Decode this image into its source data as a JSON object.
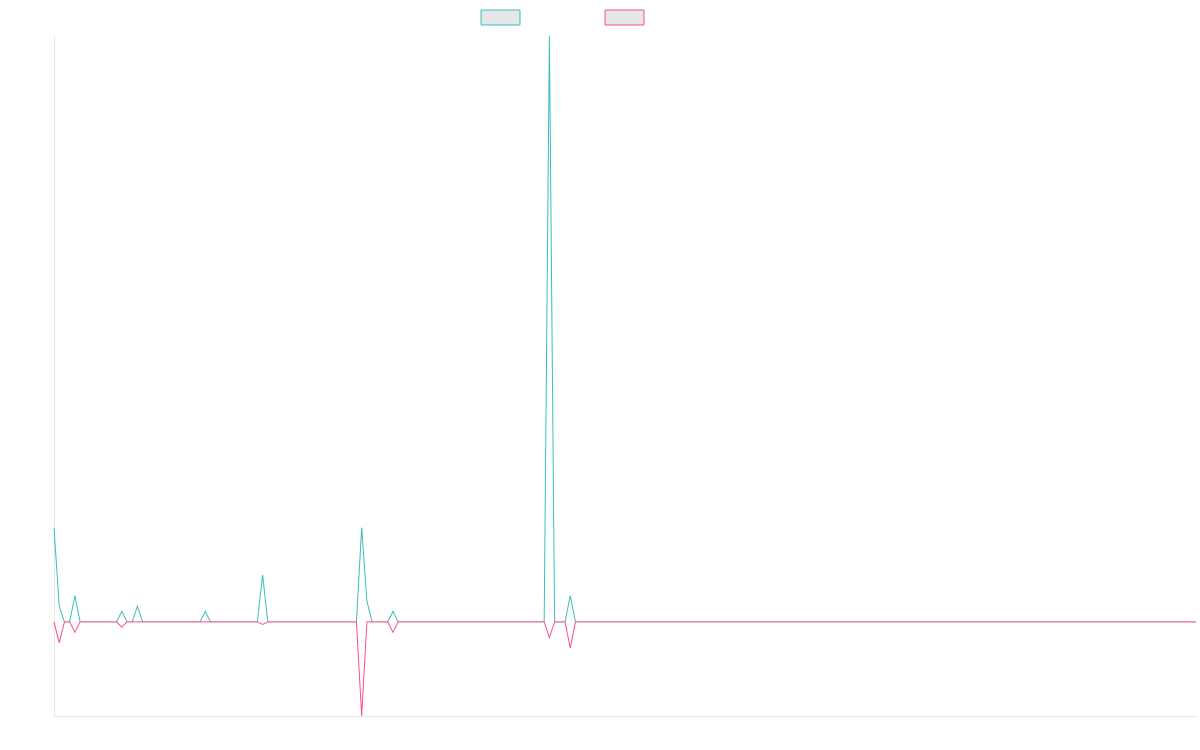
{
  "chart_data": {
    "type": "line",
    "title": "",
    "xlabel": "",
    "ylabel": "",
    "grid": false,
    "legend_position": "top-center",
    "x_count": 220,
    "ylim": [
      -18,
      112
    ],
    "baseline": 0,
    "series": [
      {
        "name": "",
        "color": "#3bbdbd",
        "points": [
          [
            0,
            18
          ],
          [
            1,
            3
          ],
          [
            4,
            5
          ],
          [
            13,
            2
          ],
          [
            16,
            3
          ],
          [
            29,
            2
          ],
          [
            40,
            9
          ],
          [
            59,
            18
          ],
          [
            60,
            4
          ],
          [
            65,
            2
          ],
          [
            95,
            112
          ],
          [
            99,
            5
          ]
        ]
      },
      {
        "name": "",
        "color": "#ff4f7b",
        "points": [
          [
            1,
            -4
          ],
          [
            4,
            -2
          ],
          [
            13,
            -1
          ],
          [
            40,
            -0.5
          ],
          [
            59,
            -18
          ],
          [
            65,
            -2
          ],
          [
            95,
            -3
          ],
          [
            99,
            -5
          ]
        ]
      }
    ]
  }
}
